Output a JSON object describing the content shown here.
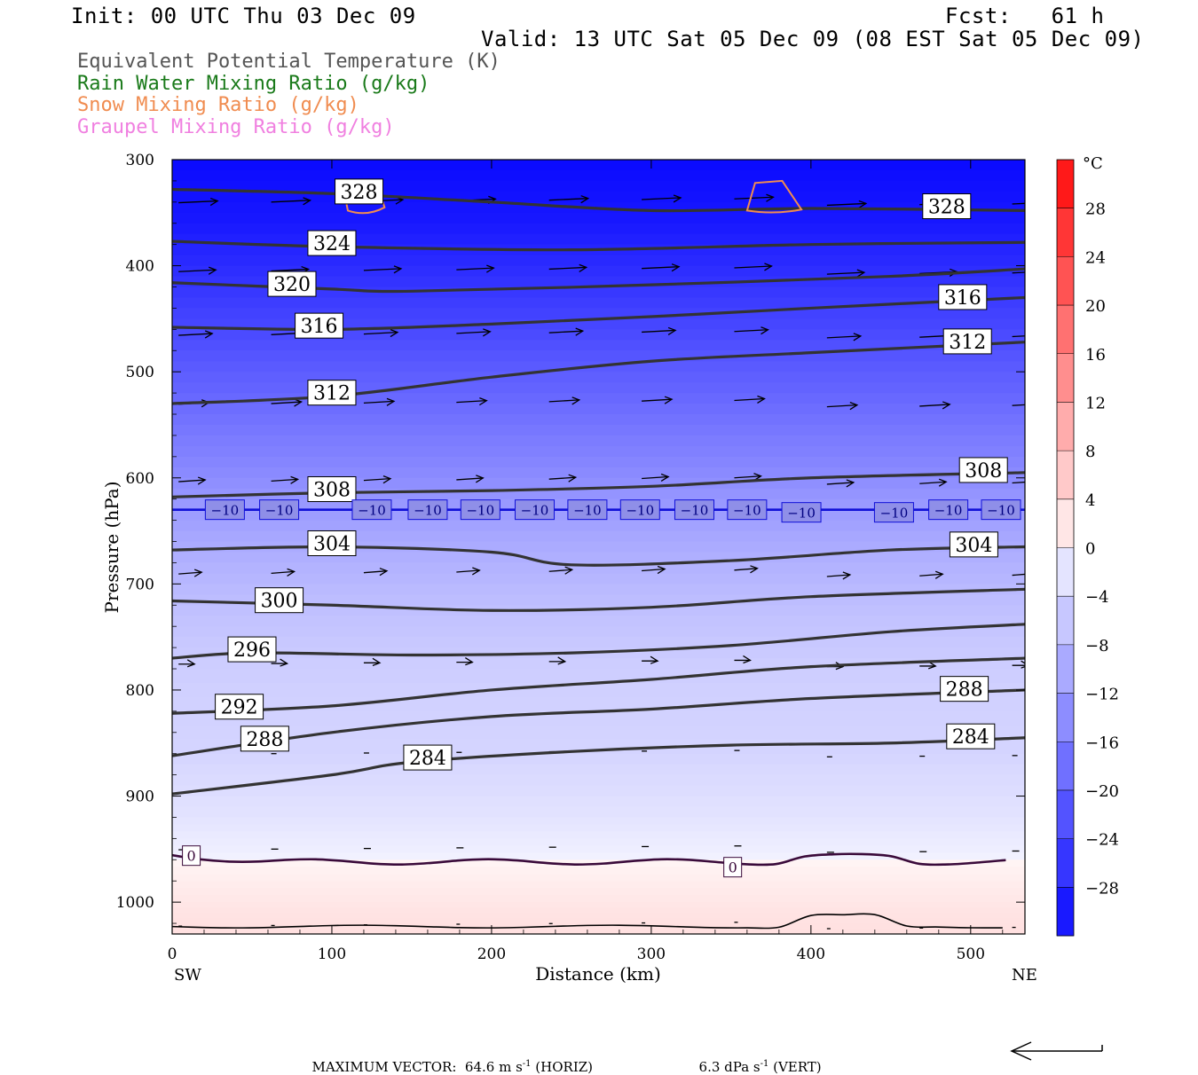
{
  "header": {
    "init": "Init: 00 UTC Thu 03 Dec 09",
    "fcst": "Fcst:   61 h",
    "valid": "Valid: 13 UTC Sat 05 Dec 09 (08 EST Sat 05 Dec 09)"
  },
  "legend": [
    {
      "label": "Equivalent Potential Temperature (K)",
      "color": "#555555"
    },
    {
      "label": "Rain Water Mixing Ratio (g/kg)",
      "color": "#1a7a1a"
    },
    {
      "label": "Snow Mixing Ratio (g/kg)",
      "color": "#f08c50"
    },
    {
      "label": "Graupel Mixing Ratio (g/kg)",
      "color": "#f080e0"
    }
  ],
  "footer": {
    "max_vector": "MAXIMUM VECTOR:  64.6 m s",
    "horiz": " (HORIZ)",
    "vert": "6.3 dPa s",
    "vert_suffix": " (VERT)",
    "exp": "-1"
  },
  "chart_data": {
    "type": "heatmap",
    "xlabel": "Distance (km)",
    "ylabel": "Pressure (hPa)",
    "x_range": [
      0,
      534
    ],
    "y_range": [
      300,
      1030
    ],
    "y_scale": "linear-inverted",
    "x_ticks": [
      0,
      100,
      200,
      300,
      400,
      500
    ],
    "y_ticks": [
      300,
      400,
      500,
      600,
      700,
      800,
      900,
      1000
    ],
    "x_end_labels": {
      "left": "SW",
      "right": "NE"
    },
    "colorbar": {
      "unit": "°C",
      "tick_labels": [
        "28",
        "24",
        "20",
        "16",
        "12",
        "8",
        "4",
        "0",
        "−4",
        "−8",
        "−12",
        "−16",
        "−20",
        "−24",
        "−28"
      ],
      "range": [
        -32,
        32
      ],
      "step": 4
    },
    "temperature_fill_by_pressure": [
      {
        "p": 300,
        "t": -32
      },
      {
        "p": 360,
        "t": -30
      },
      {
        "p": 420,
        "t": -26
      },
      {
        "p": 480,
        "t": -22
      },
      {
        "p": 540,
        "t": -18
      },
      {
        "p": 600,
        "t": -14
      },
      {
        "p": 660,
        "t": -10
      },
      {
        "p": 720,
        "t": -7
      },
      {
        "p": 780,
        "t": -5
      },
      {
        "p": 860,
        "t": -4
      },
      {
        "p": 920,
        "t": -2
      },
      {
        "p": 960,
        "t": 0
      },
      {
        "p": 1000,
        "t": 2
      },
      {
        "p": 1030,
        "t": 3
      }
    ],
    "theta_e_contours": [
      {
        "value": 328,
        "labels": [
          "328",
          "328"
        ],
        "points": [
          [
            0,
            328
          ],
          [
            100,
            332
          ],
          [
            200,
            340
          ],
          [
            300,
            348
          ],
          [
            400,
            346
          ],
          [
            534,
            348
          ]
        ]
      },
      {
        "value": 324,
        "labels": [
          "324"
        ],
        "points": [
          [
            0,
            377
          ],
          [
            100,
            382
          ],
          [
            250,
            385
          ],
          [
            400,
            380
          ],
          [
            534,
            378
          ]
        ]
      },
      {
        "value": 320,
        "labels": [
          "320"
        ],
        "points": [
          [
            0,
            416
          ],
          [
            100,
            422
          ],
          [
            150,
            424
          ],
          [
            300,
            418
          ],
          [
            450,
            410
          ],
          [
            534,
            403
          ]
        ]
      },
      {
        "value": 316,
        "labels": [
          "316",
          "316"
        ],
        "points": [
          [
            0,
            458
          ],
          [
            100,
            460
          ],
          [
            200,
            455
          ],
          [
            300,
            448
          ],
          [
            400,
            440
          ],
          [
            534,
            430
          ]
        ]
      },
      {
        "value": 312,
        "labels": [
          "312",
          "312"
        ],
        "points": [
          [
            0,
            530
          ],
          [
            100,
            523
          ],
          [
            200,
            505
          ],
          [
            300,
            490
          ],
          [
            400,
            482
          ],
          [
            534,
            472
          ]
        ]
      },
      {
        "value": 308,
        "labels": [
          "308",
          "308"
        ],
        "points": [
          [
            0,
            618
          ],
          [
            100,
            614
          ],
          [
            200,
            612
          ],
          [
            300,
            608
          ],
          [
            400,
            600
          ],
          [
            534,
            595
          ]
        ]
      },
      {
        "value": 304,
        "labels": [
          "304",
          "304"
        ],
        "points": [
          [
            0,
            668
          ],
          [
            100,
            665
          ],
          [
            200,
            670
          ],
          [
            250,
            682
          ],
          [
            350,
            678
          ],
          [
            450,
            668
          ],
          [
            534,
            665
          ]
        ]
      },
      {
        "value": 300,
        "labels": [
          "300"
        ],
        "points": [
          [
            0,
            716
          ],
          [
            100,
            720
          ],
          [
            200,
            725
          ],
          [
            300,
            722
          ],
          [
            400,
            712
          ],
          [
            534,
            705
          ]
        ]
      },
      {
        "value": 296,
        "labels": [
          "296"
        ],
        "points": [
          [
            0,
            770
          ],
          [
            50,
            765
          ],
          [
            150,
            767
          ],
          [
            250,
            765
          ],
          [
            350,
            758
          ],
          [
            450,
            745
          ],
          [
            534,
            738
          ]
        ]
      },
      {
        "value": 292,
        "labels": [
          "292"
        ],
        "points": [
          [
            0,
            822
          ],
          [
            100,
            815
          ],
          [
            200,
            800
          ],
          [
            300,
            790
          ],
          [
            400,
            778
          ],
          [
            534,
            770
          ]
        ]
      },
      {
        "value": 288,
        "labels": [
          "288",
          "288"
        ],
        "points": [
          [
            0,
            862
          ],
          [
            100,
            840
          ],
          [
            200,
            825
          ],
          [
            300,
            818
          ],
          [
            400,
            808
          ],
          [
            534,
            800
          ]
        ]
      },
      {
        "value": 284,
        "labels": [
          "284",
          "284"
        ],
        "points": [
          [
            0,
            898
          ],
          [
            100,
            880
          ],
          [
            150,
            868
          ],
          [
            250,
            858
          ],
          [
            350,
            852
          ],
          [
            450,
            850
          ],
          [
            534,
            845
          ]
        ]
      }
    ],
    "isotherms": [
      {
        "value": -10,
        "label": "−10",
        "pressure": 630
      },
      {
        "value": 0,
        "label": "0",
        "pressure": 962
      }
    ]
  }
}
